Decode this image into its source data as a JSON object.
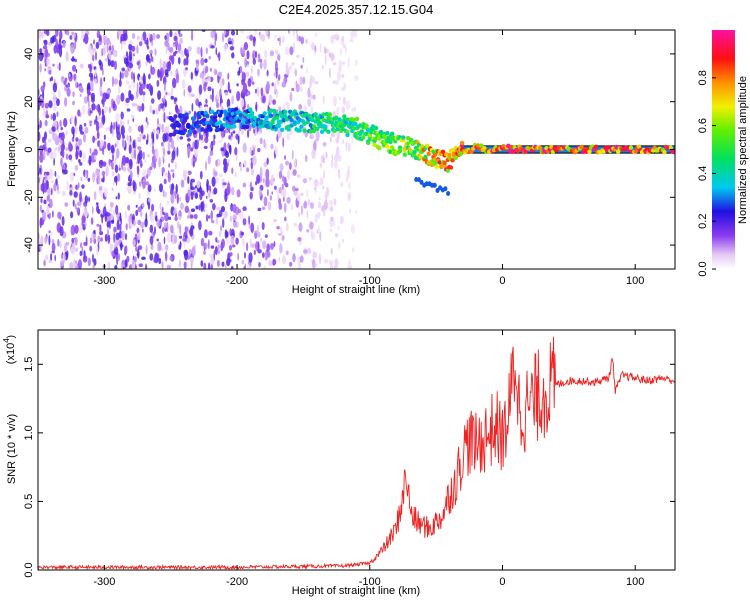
{
  "title": "C2E4.2025.357.12.15.G04",
  "chart_data": [
    {
      "type": "heatmap",
      "panel": "top",
      "xlabel": "Height of straight line (km)",
      "ylabel": "Frequency (Hz)",
      "xlim": [
        -350,
        130
      ],
      "ylim": [
        -50,
        50
      ],
      "xticks": [
        -300,
        -200,
        -100,
        0,
        100
      ],
      "yticks": [
        -40,
        -20,
        0,
        20,
        40
      ],
      "colorbar": {
        "label": "Normalized spectral amplitude",
        "range": [
          0.0,
          1.0
        ],
        "ticks": [
          "0.0",
          "0.2",
          "0.4",
          "0.6",
          "0.8"
        ],
        "colormap": "rainbow (white-purple-blue-cyan-green-yellow-red-magenta)"
      },
      "ridge": {
        "description": "Signal frequency track vs height",
        "x": [
          -250,
          -200,
          -160,
          -130,
          -110,
          -95,
          -80,
          -65,
          -50,
          -40,
          -30,
          -20,
          -10,
          0,
          10,
          50,
          100,
          130
        ],
        "y": [
          10,
          13,
          12,
          11,
          9,
          5,
          2,
          0,
          -4,
          -5,
          -1,
          1,
          0,
          1,
          0,
          0,
          0,
          0
        ],
        "amplitude": [
          0.25,
          0.35,
          0.45,
          0.5,
          0.55,
          0.6,
          0.65,
          0.7,
          0.85,
          0.95,
          0.95,
          0.95,
          0.95,
          0.95,
          0.95,
          0.95,
          0.95,
          0.95
        ]
      },
      "noise_region_x": [
        -350,
        -110
      ]
    },
    {
      "type": "line",
      "panel": "bottom",
      "xlabel": "Height of straight line (km)",
      "ylabel": "SNR (10 * v/v)",
      "yscale_label": "(x10",
      "yscale_exponent": "4",
      "xlim": [
        -350,
        130
      ],
      "ylim": [
        0,
        1.75
      ],
      "xticks": [
        -300,
        -200,
        -100,
        0,
        100
      ],
      "yticks": [
        "0.0",
        "0.5",
        "1.0",
        "1.5"
      ],
      "series": [
        {
          "name": "SNR",
          "color": "#ee2222",
          "x": [
            -350,
            -200,
            -120,
            -100,
            -90,
            -80,
            -75,
            -72,
            -70,
            -65,
            -55,
            -45,
            -40,
            -35,
            -30,
            -25,
            -20,
            -15,
            -10,
            -5,
            0,
            5,
            8,
            10,
            12,
            15,
            20,
            30,
            40,
            50,
            60,
            70,
            80,
            83,
            85,
            90,
            100,
            110,
            120,
            130
          ],
          "values": [
            0.02,
            0.02,
            0.03,
            0.05,
            0.15,
            0.3,
            0.55,
            0.7,
            0.45,
            0.35,
            0.3,
            0.4,
            0.55,
            0.65,
            0.85,
            0.95,
            0.9,
            0.95,
            1.0,
            1.05,
            0.95,
            1.15,
            1.4,
            1.6,
            1.2,
            1.15,
            1.2,
            1.3,
            1.35,
            1.38,
            1.38,
            1.37,
            1.4,
            1.55,
            1.3,
            1.42,
            1.4,
            1.38,
            1.4,
            1.38
          ]
        }
      ]
    }
  ]
}
